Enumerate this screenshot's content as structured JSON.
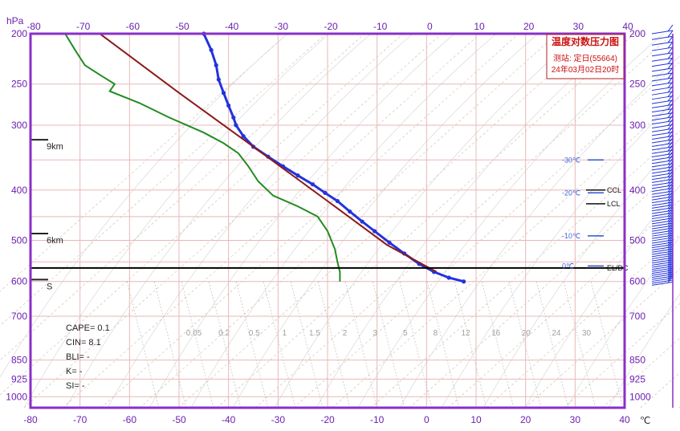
{
  "chart_data": {
    "type": "line",
    "title": "温度对数压力图",
    "station_line": "测站: 定日(55664)",
    "time_line": "24年03月02日20时",
    "x_unit_label": "℃",
    "y_unit_label": "hPa",
    "xlim": [
      -80,
      40
    ],
    "ylim": [
      1050,
      200
    ],
    "y_scale": "log",
    "grid": true,
    "x_ticks": [
      -80,
      -70,
      -60,
      -50,
      -40,
      -30,
      -20,
      -10,
      0,
      10,
      20,
      30,
      40
    ],
    "y_ticks": [
      200,
      250,
      300,
      400,
      500,
      600,
      700,
      850,
      925,
      1000
    ],
    "right_y_ticks": [
      200,
      250,
      300,
      400,
      500,
      600,
      700,
      850,
      925,
      1000
    ],
    "height_marks": [
      {
        "label": "9km",
        "p": 320
      },
      {
        "label": "6km",
        "p": 485
      },
      {
        "label": "S",
        "p": 595
      }
    ],
    "indices": [
      "CAPE= 0.1",
      "CIN= 8.1",
      "BLI= -",
      "K= -",
      "SI= -"
    ],
    "levels_right": [
      {
        "label": "-30℃",
        "p": 350
      },
      {
        "label": "-20℃",
        "p": 405
      },
      {
        "label": "-10℃",
        "p": 490
      },
      {
        "label": "0℃",
        "p": 560
      }
    ],
    "level_markers": [
      {
        "label": "CCL",
        "p": 400
      },
      {
        "label": "LCL",
        "p": 425
      },
      {
        "label": "EL/DC",
        "p": 565
      }
    ],
    "mixing_ratio_labels": [
      "0.05",
      "0.2",
      "0.5",
      "1",
      "1.5",
      "2",
      "3",
      "5",
      "8",
      "12",
      "16",
      "20",
      "24",
      "30"
    ],
    "surface_pressure": 565,
    "series": [
      {
        "name": "",
        "color": "#2233dd",
        "points": [
          [
            -45,
            200
          ],
          [
            -43.5,
            215
          ],
          [
            -42.5,
            230
          ],
          [
            -42,
            245
          ],
          [
            -41,
            260
          ],
          [
            -40,
            275
          ],
          [
            -39,
            290
          ],
          [
            -38.5,
            300
          ],
          [
            -37,
            315
          ],
          [
            -35,
            330
          ],
          [
            -32,
            345
          ],
          [
            -29,
            360
          ],
          [
            -26,
            375
          ],
          [
            -23,
            390
          ],
          [
            -20.5,
            405
          ],
          [
            -18,
            420
          ],
          [
            -15.5,
            440
          ],
          [
            -13,
            460
          ],
          [
            -10.5,
            480
          ],
          [
            -7.5,
            505
          ],
          [
            -4.5,
            530
          ],
          [
            -1.5,
            555
          ],
          [
            1.5,
            575
          ],
          [
            4.5,
            590
          ],
          [
            7.5,
            600
          ]
        ]
      },
      {
        "name": "",
        "color": "#228b22",
        "points": [
          [
            -73,
            200
          ],
          [
            -71,
            215
          ],
          [
            -69,
            230
          ],
          [
            -66,
            240
          ],
          [
            -63,
            250
          ],
          [
            -64,
            258
          ],
          [
            -58,
            272
          ],
          [
            -52,
            290
          ],
          [
            -45,
            310
          ],
          [
            -41,
            325
          ],
          [
            -38,
            340
          ],
          [
            -36,
            360
          ],
          [
            -34,
            385
          ],
          [
            -31,
            410
          ],
          [
            -26,
            430
          ],
          [
            -22,
            450
          ],
          [
            -20,
            480
          ],
          [
            -18.5,
            520
          ],
          [
            -18,
            550
          ],
          [
            -17.5,
            575
          ],
          [
            -17.5,
            600
          ]
        ]
      },
      {
        "name": "",
        "color": "#8b1a1a",
        "points": [
          [
            -66,
            200
          ],
          [
            -50,
            260
          ],
          [
            -35,
            330
          ],
          [
            -20,
            420
          ],
          [
            -8,
            510
          ],
          [
            2,
            575
          ]
        ]
      }
    ],
    "wind_barbs": {
      "color": "#2233dd",
      "count": 80,
      "p_range": [
        200,
        610
      ]
    }
  }
}
